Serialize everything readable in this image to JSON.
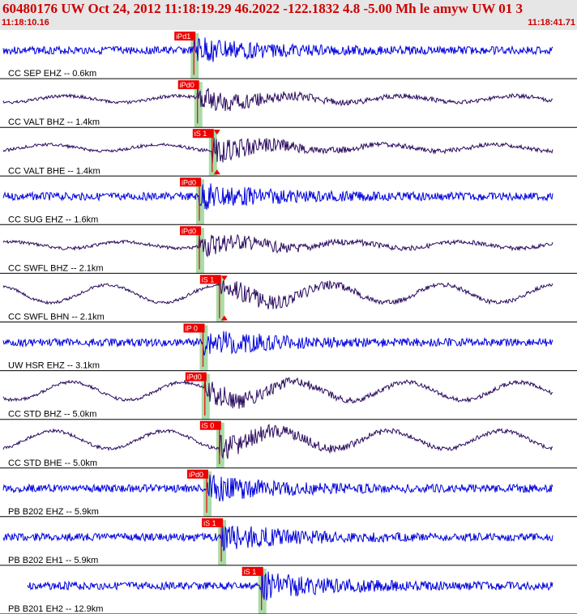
{
  "header": {
    "title": "60480176 UW Oct 24, 2012 11:18:19.29   46.2022 -122.1832  4.8 -5.00 Mh le amyw UW 01   3",
    "start_time": "11:18:10.16",
    "end_time": "11:18:41.71"
  },
  "colors": {
    "header_bg": "#e6e6e6",
    "header_text": "#cc0000",
    "pick": "#ee0000",
    "pick_window": "#a8dca8",
    "trace_blue": "#0000dd",
    "trace_purple": "#2a0a5e",
    "separator": "#000000"
  },
  "chart_data": {
    "type": "seismogram",
    "time_range": [
      "11:18:10.16",
      "11:18:41.71"
    ],
    "traces": [
      {
        "label": "CC SEP EHZ -- 0.6km",
        "color": "blue",
        "picks": [
          {
            "label": "iPd1",
            "t": 10.6
          }
        ],
        "arrival": 10.6
      },
      {
        "label": "CC VALT BHZ -- 1.4km",
        "color": "purple",
        "picks": [
          {
            "label": "iPd0",
            "t": 10.8
          }
        ],
        "arrival": 10.8
      },
      {
        "label": "CC VALT BHE -- 1.4km",
        "color": "purple",
        "picks": [
          {
            "label": "iS 1",
            "t": 11.6,
            "marker": true
          }
        ],
        "arrival": 11.6
      },
      {
        "label": "CC SUG EHZ -- 1.6km",
        "color": "blue",
        "picks": [
          {
            "label": "iPd0",
            "t": 10.9
          }
        ],
        "arrival": 10.9
      },
      {
        "label": "CC SWFL BHZ -- 2.1km",
        "color": "purple",
        "picks": [
          {
            "label": "iPd0",
            "t": 10.9
          }
        ],
        "arrival": 10.9
      },
      {
        "label": "CC SWFL BHN -- 2.1km",
        "color": "purple",
        "picks": [
          {
            "label": "iS 1",
            "t": 12.0,
            "marker": true
          }
        ],
        "arrival": 12.0
      },
      {
        "label": "UW HSR EHZ -- 3.1km",
        "color": "blue",
        "picks": [
          {
            "label": "iP 0",
            "t": 11.1
          }
        ],
        "arrival": 11.1
      },
      {
        "label": "CC STD BHZ -- 5.0km",
        "color": "purple",
        "picks": [
          {
            "label": "iPd0",
            "t": 11.2
          }
        ],
        "arrival": 11.2
      },
      {
        "label": "CC STD BHE -- 5.0km",
        "color": "purple",
        "picks": [
          {
            "label": "iS 0",
            "t": 12.0
          }
        ],
        "arrival": 12.0
      },
      {
        "label": "PB B202 EHZ -- 5.9km",
        "color": "blue",
        "picks": [
          {
            "label": "iPd0",
            "t": 11.3
          }
        ],
        "arrival": 11.3
      },
      {
        "label": "PB B202 EH1 -- 5.9km",
        "color": "blue",
        "picks": [
          {
            "label": "iS 1",
            "t": 12.1
          }
        ],
        "arrival": 12.1
      },
      {
        "label": "PB B201 EH2 -- 12.9km",
        "color": "blue",
        "picks": [
          {
            "label": "iS 1",
            "t": 14.3
          }
        ],
        "arrival": 14.3
      }
    ]
  }
}
